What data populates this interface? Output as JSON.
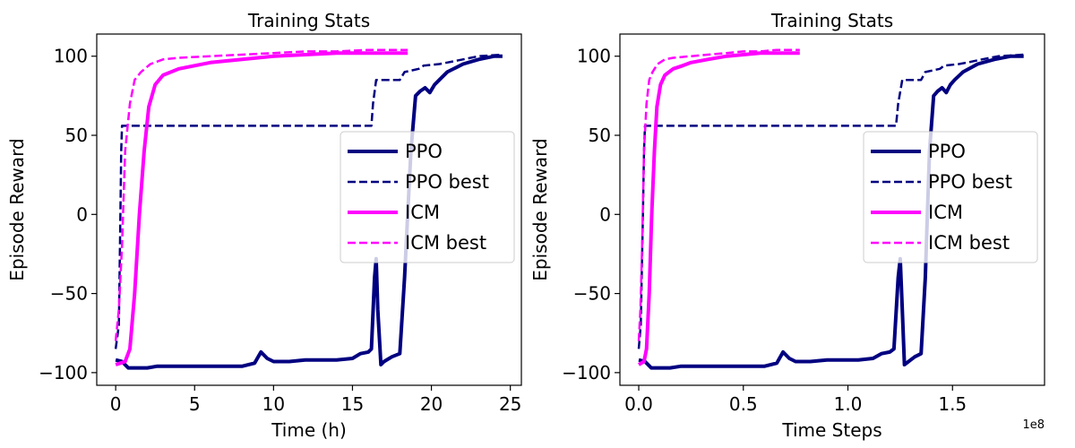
{
  "chart_data": [
    {
      "type": "line",
      "title": "Training Stats",
      "xlabel": "Time (h)",
      "ylabel": "Episode Reward",
      "x_offset_text": "",
      "xlim": [
        -1.2,
        25.7
      ],
      "ylim": [
        -108,
        114
      ],
      "xticks": [
        0,
        5,
        10,
        15,
        20,
        25
      ],
      "xtick_labels": [
        "0",
        "5",
        "10",
        "15",
        "20",
        "25"
      ],
      "yticks": [
        -100,
        -50,
        0,
        50,
        100
      ],
      "ytick_labels": [
        "−100",
        "−50",
        "0",
        "50",
        "100"
      ],
      "legend_position": "center-right",
      "series": [
        {
          "name": "PPO",
          "color": "#000080",
          "style": "solid",
          "width": 4,
          "x": [
            0,
            0.4,
            0.8,
            1.2,
            2.0,
            2.6,
            4,
            6,
            8,
            8.8,
            9.2,
            9.6,
            10,
            11,
            12,
            13,
            14,
            15,
            15.5,
            16,
            16.2,
            16.4,
            16.5,
            16.6,
            16.8,
            17,
            17.5,
            18,
            18.3,
            18.5,
            18.7,
            19,
            19.3,
            19.6,
            19.9,
            20.2,
            20.5,
            21,
            22,
            23,
            24,
            24.5
          ],
          "y": [
            -92,
            -93,
            -97,
            -97,
            -97,
            -96,
            -96,
            -96,
            -96,
            -94,
            -87,
            -91,
            -93,
            -93,
            -92,
            -92,
            -92,
            -91,
            -88,
            -87,
            -85,
            -40,
            -28,
            -60,
            -95,
            -93,
            -90,
            -88,
            -40,
            0,
            40,
            75,
            78,
            80,
            77,
            82,
            85,
            90,
            95,
            98,
            100,
            100
          ]
        },
        {
          "name": "PPO best",
          "color": "#000080",
          "style": "dashed",
          "width": 2.5,
          "x": [
            0,
            0.2,
            0.3,
            0.35,
            0.4,
            16.2,
            16.3,
            16.5,
            17.5,
            18,
            18.3,
            19.2,
            19.5,
            20.5,
            21,
            22,
            23,
            24.5
          ],
          "y": [
            -85,
            -70,
            0,
            40,
            56,
            56,
            70,
            85,
            85,
            85,
            90,
            92,
            94,
            95,
            96,
            98,
            100,
            101
          ]
        },
        {
          "name": "ICM",
          "color": "#ff00ff",
          "style": "solid",
          "width": 4,
          "x": [
            0,
            0.3,
            0.6,
            0.9,
            1.2,
            1.5,
            1.8,
            2.1,
            2.5,
            3,
            4,
            5,
            6,
            8,
            10,
            12,
            14,
            16,
            18.5
          ],
          "y": [
            -95,
            -94,
            -93,
            -85,
            -50,
            0,
            40,
            68,
            82,
            88,
            92,
            94,
            96,
            98,
            100,
            101,
            102,
            102,
            102
          ]
        },
        {
          "name": "ICM best",
          "color": "#ff00ff",
          "style": "dashed",
          "width": 2.5,
          "x": [
            0,
            0.2,
            0.4,
            0.6,
            0.9,
            1.2,
            1.6,
            2.2,
            3,
            4,
            6,
            8,
            10,
            12,
            14,
            16,
            18.5
          ],
          "y": [
            -80,
            -60,
            -20,
            40,
            70,
            85,
            90,
            95,
            98,
            99,
            100,
            101,
            102,
            103,
            103,
            104,
            104
          ]
        }
      ]
    },
    {
      "type": "line",
      "title": "Training Stats",
      "xlabel": "Time Steps",
      "ylabel": "Episode Reward",
      "x_offset_text": "1e8",
      "xlim": [
        -0.09,
        1.94
      ],
      "ylim": [
        -108,
        114
      ],
      "xticks": [
        0,
        0.5,
        1.0,
        1.5
      ],
      "xtick_labels": [
        "0.0",
        "0.5",
        "1.0",
        "1.5"
      ],
      "yticks": [
        -100,
        -50,
        0,
        50,
        100
      ],
      "ytick_labels": [
        "−100",
        "−50",
        "0",
        "50",
        "100"
      ],
      "legend_position": "center-right",
      "series": [
        {
          "name": "PPO",
          "color": "#000080",
          "style": "solid",
          "width": 4,
          "x": [
            0,
            0.03,
            0.06,
            0.09,
            0.15,
            0.2,
            0.3,
            0.45,
            0.6,
            0.66,
            0.69,
            0.72,
            0.75,
            0.82,
            0.9,
            0.97,
            1.05,
            1.12,
            1.16,
            1.2,
            1.22,
            1.24,
            1.25,
            1.26,
            1.27,
            1.29,
            1.32,
            1.35,
            1.37,
            1.38,
            1.39,
            1.41,
            1.43,
            1.45,
            1.47,
            1.49,
            1.51,
            1.55,
            1.62,
            1.7,
            1.78,
            1.84
          ],
          "y": [
            -92,
            -93,
            -97,
            -97,
            -97,
            -96,
            -96,
            -96,
            -96,
            -94,
            -87,
            -91,
            -93,
            -93,
            -92,
            -92,
            -92,
            -91,
            -88,
            -87,
            -85,
            -40,
            -28,
            -60,
            -95,
            -93,
            -90,
            -88,
            -40,
            0,
            40,
            75,
            78,
            80,
            77,
            82,
            85,
            90,
            95,
            98,
            100,
            100
          ]
        },
        {
          "name": "PPO best",
          "color": "#000080",
          "style": "dashed",
          "width": 2.5,
          "x": [
            0,
            0.01,
            0.02,
            0.025,
            0.03,
            1.23,
            1.24,
            1.26,
            1.32,
            1.35,
            1.37,
            1.44,
            1.46,
            1.53,
            1.57,
            1.64,
            1.72,
            1.84
          ],
          "y": [
            -85,
            -70,
            0,
            40,
            56,
            56,
            70,
            85,
            85,
            85,
            90,
            92,
            94,
            95,
            96,
            98,
            100,
            101
          ]
        },
        {
          "name": "ICM",
          "color": "#ff00ff",
          "style": "solid",
          "width": 4,
          "x": [
            0,
            0.012,
            0.025,
            0.037,
            0.05,
            0.062,
            0.075,
            0.087,
            0.104,
            0.125,
            0.165,
            0.21,
            0.25,
            0.33,
            0.42,
            0.5,
            0.58,
            0.66,
            0.77
          ],
          "y": [
            -95,
            -94,
            -93,
            -85,
            -50,
            0,
            40,
            68,
            82,
            88,
            92,
            94,
            96,
            98,
            100,
            101,
            102,
            102,
            102
          ]
        },
        {
          "name": "ICM best",
          "color": "#ff00ff",
          "style": "dashed",
          "width": 2.5,
          "x": [
            0,
            0.008,
            0.016,
            0.025,
            0.037,
            0.05,
            0.066,
            0.09,
            0.125,
            0.165,
            0.25,
            0.33,
            0.42,
            0.5,
            0.58,
            0.66,
            0.77
          ],
          "y": [
            -80,
            -60,
            -20,
            40,
            70,
            85,
            90,
            95,
            98,
            99,
            100,
            101,
            102,
            103,
            103,
            104,
            104
          ]
        }
      ]
    }
  ]
}
